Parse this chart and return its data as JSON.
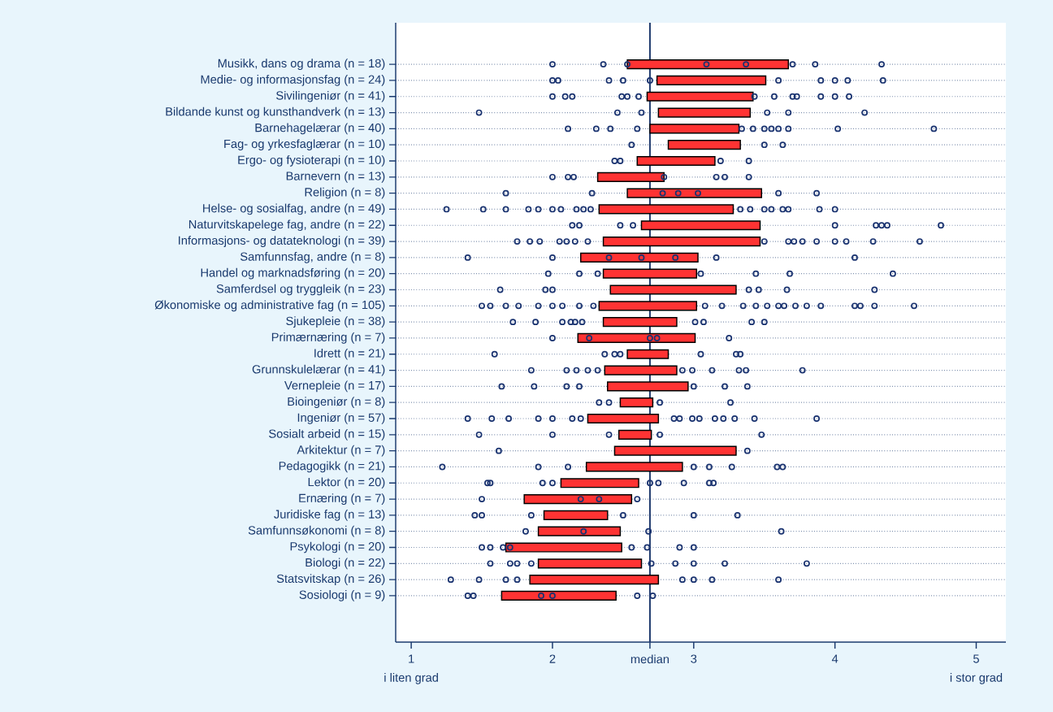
{
  "chart_data": {
    "type": "bar",
    "orientation": "horizontal",
    "categories": [
      "Musikk, dans og drama (n = 18)",
      "Medie- og informasjonsfag (n = 24)",
      "Sivilingeniør (n = 41)",
      "Bildande kunst og kunsthandverk (n = 13)",
      "Barnehagelærar (n = 40)",
      "Fag- og yrkesfaglærar (n = 10)",
      "Ergo- og fysioterapi (n = 10)",
      "Barnevern (n = 13)",
      "Religion (n = 8)",
      "Helse- og sosialfag, andre (n = 49)",
      "Naturvitskapelege fag, andre (n = 22)",
      "Informasjons- og datateknologi (n = 39)",
      "Samfunnsfag, andre (n = 8)",
      "Handel og marknadsføring (n = 20)",
      "Samferdsel og tryggleik (n = 23)",
      "Økonomiske og administrative fag (n = 105)",
      "Sjukepleie (n = 38)",
      "Primærnæring (n = 7)",
      "Idrett (n = 21)",
      "Grunnskulelærar (n = 41)",
      "Vernepleie (n = 17)",
      "Bioingeniør (n = 8)",
      "Ingeniør (n = 57)",
      "Sosialt arbeid (n = 15)",
      "Arkitektur (n = 7)",
      "Pedagogikk (n = 21)",
      "Lektor (n = 20)",
      "Ernæring (n = 7)",
      "Juridiske fag (n = 13)",
      "Samfunnsøkonomi (n = 8)",
      "Psykologi (n = 20)",
      "Biologi (n = 22)",
      "Statsvitskap (n = 26)",
      "Sosiologi (n = 9)"
    ],
    "series": [
      {
        "color": "#ff3333",
        "base": [
          2.53,
          2.74,
          2.67,
          2.75,
          2.69,
          2.82,
          2.6,
          2.32,
          2.53,
          2.33,
          2.63,
          2.36,
          2.2,
          2.36,
          2.41,
          2.33,
          2.36,
          2.18,
          2.53,
          2.37,
          2.39,
          2.48,
          2.25,
          2.47,
          2.44,
          2.24,
          2.06,
          1.8,
          1.94,
          1.9,
          1.67,
          1.9,
          1.84,
          1.64
        ],
        "values": [
          1.14,
          0.77,
          0.75,
          0.65,
          0.63,
          0.51,
          0.55,
          0.47,
          0.95,
          0.95,
          0.84,
          1.11,
          0.83,
          0.66,
          0.89,
          0.69,
          0.52,
          0.83,
          0.29,
          0.51,
          0.57,
          0.23,
          0.5,
          0.23,
          0.86,
          0.68,
          0.55,
          0.76,
          0.45,
          0.58,
          0.82,
          0.73,
          0.91,
          0.81
        ]
      },
      {
        "type": "scatter",
        "color": "#1a3370",
        "marker": "circle",
        "x": [
          "Musikk, dans og drama (n = 18)",
          "Musikk, dans og drama (n = 18)",
          "Musikk, dans og drama (n = 18)",
          "Musikk, dans og drama (n = 18)",
          "Musikk, dans og drama (n = 18)",
          "Musikk, dans og drama (n = 18)",
          "Musikk, dans og drama (n = 18)",
          "Musikk, dans og drama (n = 18)",
          "Medie- og informasjonsfag (n = 24)",
          "Medie- og informasjonsfag (n = 24)",
          "Medie- og informasjonsfag (n = 24)",
          "Medie- og informasjonsfag (n = 24)",
          "Medie- og informasjonsfag (n = 24)",
          "Medie- og informasjonsfag (n = 24)",
          "Medie- og informasjonsfag (n = 24)",
          "Medie- og informasjonsfag (n = 24)",
          "Medie- og informasjonsfag (n = 24)",
          "Medie- og informasjonsfag (n = 24)",
          "Sivilingeniør (n = 41)",
          "Sivilingeniør (n = 41)",
          "Sivilingeniør (n = 41)",
          "Sivilingeniør (n = 41)",
          "Sivilingeniør (n = 41)",
          "Sivilingeniør (n = 41)",
          "Sivilingeniør (n = 41)",
          "Sivilingeniør (n = 41)",
          "Sivilingeniør (n = 41)",
          "Sivilingeniør (n = 41)",
          "Sivilingeniør (n = 41)",
          "Sivilingeniør (n = 41)",
          "Sivilingeniør (n = 41)",
          "Bildande kunst og kunsthandverk (n = 13)",
          "Bildande kunst og kunsthandverk (n = 13)",
          "Bildande kunst og kunsthandverk (n = 13)",
          "Bildande kunst og kunsthandverk (n = 13)",
          "Bildande kunst og kunsthandverk (n = 13)",
          "Bildande kunst og kunsthandverk (n = 13)",
          "Barnehagelærar (n = 40)",
          "Barnehagelærar (n = 40)",
          "Barnehagelærar (n = 40)",
          "Barnehagelærar (n = 40)",
          "Barnehagelærar (n = 40)",
          "Barnehagelærar (n = 40)",
          "Barnehagelærar (n = 40)",
          "Barnehagelærar (n = 40)",
          "Barnehagelærar (n = 40)",
          "Barnehagelærar (n = 40)",
          "Barnehagelærar (n = 40)",
          "Barnehagelærar (n = 40)",
          "Fag- og yrkesfaglærar (n = 10)",
          "Fag- og yrkesfaglærar (n = 10)",
          "Fag- og yrkesfaglærar (n = 10)",
          "Ergo- og fysioterapi (n = 10)",
          "Ergo- og fysioterapi (n = 10)",
          "Ergo- og fysioterapi (n = 10)",
          "Ergo- og fysioterapi (n = 10)",
          "Barnevern (n = 13)",
          "Barnevern (n = 13)",
          "Barnevern (n = 13)",
          "Barnevern (n = 13)",
          "Barnevern (n = 13)",
          "Barnevern (n = 13)",
          "Barnevern (n = 13)",
          "Religion (n = 8)",
          "Religion (n = 8)",
          "Religion (n = 8)",
          "Religion (n = 8)",
          "Religion (n = 8)",
          "Religion (n = 8)",
          "Religion (n = 8)",
          "Helse- og sosialfag, andre (n = 49)",
          "Helse- og sosialfag, andre (n = 49)",
          "Helse- og sosialfag, andre (n = 49)",
          "Helse- og sosialfag, andre (n = 49)",
          "Helse- og sosialfag, andre (n = 49)",
          "Helse- og sosialfag, andre (n = 49)",
          "Helse- og sosialfag, andre (n = 49)",
          "Helse- og sosialfag, andre (n = 49)",
          "Helse- og sosialfag, andre (n = 49)",
          "Helse- og sosialfag, andre (n = 49)",
          "Helse- og sosialfag, andre (n = 49)",
          "Helse- og sosialfag, andre (n = 49)",
          "Helse- og sosialfag, andre (n = 49)",
          "Helse- og sosialfag, andre (n = 49)",
          "Helse- og sosialfag, andre (n = 49)",
          "Helse- og sosialfag, andre (n = 49)",
          "Helse- og sosialfag, andre (n = 49)",
          "Helse- og sosialfag, andre (n = 49)",
          "Naturvitskapelege fag, andre (n = 22)",
          "Naturvitskapelege fag, andre (n = 22)",
          "Naturvitskapelege fag, andre (n = 22)",
          "Naturvitskapelege fag, andre (n = 22)",
          "Naturvitskapelege fag, andre (n = 22)",
          "Naturvitskapelege fag, andre (n = 22)",
          "Naturvitskapelege fag, andre (n = 22)",
          "Naturvitskapelege fag, andre (n = 22)",
          "Naturvitskapelege fag, andre (n = 22)",
          "Informasjons- og datateknologi (n = 39)",
          "Informasjons- og datateknologi (n = 39)",
          "Informasjons- og datateknologi (n = 39)",
          "Informasjons- og datateknologi (n = 39)",
          "Informasjons- og datateknologi (n = 39)",
          "Informasjons- og datateknologi (n = 39)",
          "Informasjons- og datateknologi (n = 39)",
          "Informasjons- og datateknologi (n = 39)",
          "Informasjons- og datateknologi (n = 39)",
          "Informasjons- og datateknologi (n = 39)",
          "Informasjons- og datateknologi (n = 39)",
          "Informasjons- og datateknologi (n = 39)",
          "Informasjons- og datateknologi (n = 39)",
          "Informasjons- og datateknologi (n = 39)",
          "Informasjons- og datateknologi (n = 39)",
          "Informasjons- og datateknologi (n = 39)",
          "Samfunnsfag, andre (n = 8)",
          "Samfunnsfag, andre (n = 8)",
          "Samfunnsfag, andre (n = 8)",
          "Samfunnsfag, andre (n = 8)",
          "Samfunnsfag, andre (n = 8)",
          "Samfunnsfag, andre (n = 8)",
          "Samfunnsfag, andre (n = 8)",
          "Handel og marknadsføring (n = 20)",
          "Handel og marknadsføring (n = 20)",
          "Handel og marknadsføring (n = 20)",
          "Handel og marknadsføring (n = 20)",
          "Handel og marknadsføring (n = 20)",
          "Handel og marknadsføring (n = 20)",
          "Handel og marknadsføring (n = 20)",
          "Samferdsel og tryggleik (n = 23)",
          "Samferdsel og tryggleik (n = 23)",
          "Samferdsel og tryggleik (n = 23)",
          "Samferdsel og tryggleik (n = 23)",
          "Samferdsel og tryggleik (n = 23)",
          "Samferdsel og tryggleik (n = 23)",
          "Samferdsel og tryggleik (n = 23)",
          "Økonomiske og administrative fag (n = 105)",
          "Økonomiske og administrative fag (n = 105)",
          "Økonomiske og administrative fag (n = 105)",
          "Økonomiske og administrative fag (n = 105)",
          "Økonomiske og administrative fag (n = 105)",
          "Økonomiske og administrative fag (n = 105)",
          "Økonomiske og administrative fag (n = 105)",
          "Økonomiske og administrative fag (n = 105)",
          "Økonomiske og administrative fag (n = 105)",
          "Økonomiske og administrative fag (n = 105)",
          "Økonomiske og administrative fag (n = 105)",
          "Økonomiske og administrative fag (n = 105)",
          "Økonomiske og administrative fag (n = 105)",
          "Økonomiske og administrative fag (n = 105)",
          "Økonomiske og administrative fag (n = 105)",
          "Økonomiske og administrative fag (n = 105)",
          "Økonomiske og administrative fag (n = 105)",
          "Økonomiske og administrative fag (n = 105)",
          "Økonomiske og administrative fag (n = 105)",
          "Økonomiske og administrative fag (n = 105)",
          "Økonomiske og administrative fag (n = 105)",
          "Økonomiske og administrative fag (n = 105)",
          "Økonomiske og administrative fag (n = 105)",
          "Sjukepleie (n = 38)",
          "Sjukepleie (n = 38)",
          "Sjukepleie (n = 38)",
          "Sjukepleie (n = 38)",
          "Sjukepleie (n = 38)",
          "Sjukepleie (n = 38)",
          "Sjukepleie (n = 38)",
          "Sjukepleie (n = 38)",
          "Sjukepleie (n = 38)",
          "Sjukepleie (n = 38)",
          "Primærnæring (n = 7)",
          "Primærnæring (n = 7)",
          "Primærnæring (n = 7)",
          "Primærnæring (n = 7)",
          "Primærnæring (n = 7)",
          "Idrett (n = 21)",
          "Idrett (n = 21)",
          "Idrett (n = 21)",
          "Idrett (n = 21)",
          "Idrett (n = 21)",
          "Idrett (n = 21)",
          "Idrett (n = 21)",
          "Grunnskulelærar (n = 41)",
          "Grunnskulelærar (n = 41)",
          "Grunnskulelærar (n = 41)",
          "Grunnskulelærar (n = 41)",
          "Grunnskulelærar (n = 41)",
          "Grunnskulelærar (n = 41)",
          "Grunnskulelærar (n = 41)",
          "Grunnskulelærar (n = 41)",
          "Grunnskulelærar (n = 41)",
          "Grunnskulelærar (n = 41)",
          "Grunnskulelærar (n = 41)",
          "Vernepleie (n = 17)",
          "Vernepleie (n = 17)",
          "Vernepleie (n = 17)",
          "Vernepleie (n = 17)",
          "Vernepleie (n = 17)",
          "Vernepleie (n = 17)",
          "Vernepleie (n = 17)",
          "Bioingeniør (n = 8)",
          "Bioingeniør (n = 8)",
          "Bioingeniør (n = 8)",
          "Bioingeniør (n = 8)",
          "Ingeniør (n = 57)",
          "Ingeniør (n = 57)",
          "Ingeniør (n = 57)",
          "Ingeniør (n = 57)",
          "Ingeniør (n = 57)",
          "Ingeniør (n = 57)",
          "Ingeniør (n = 57)",
          "Ingeniør (n = 57)",
          "Ingeniør (n = 57)",
          "Ingeniør (n = 57)",
          "Ingeniør (n = 57)",
          "Ingeniør (n = 57)",
          "Ingeniør (n = 57)",
          "Ingeniør (n = 57)",
          "Ingeniør (n = 57)",
          "Ingeniør (n = 57)",
          "Sosialt arbeid (n = 15)",
          "Sosialt arbeid (n = 15)",
          "Sosialt arbeid (n = 15)",
          "Sosialt arbeid (n = 15)",
          "Sosialt arbeid (n = 15)",
          "Arkitektur (n = 7)",
          "Arkitektur (n = 7)",
          "Pedagogikk (n = 21)",
          "Pedagogikk (n = 21)",
          "Pedagogikk (n = 21)",
          "Pedagogikk (n = 21)",
          "Pedagogikk (n = 21)",
          "Pedagogikk (n = 21)",
          "Pedagogikk (n = 21)",
          "Pedagogikk (n = 21)",
          "Lektor (n = 20)",
          "Lektor (n = 20)",
          "Lektor (n = 20)",
          "Lektor (n = 20)",
          "Lektor (n = 20)",
          "Lektor (n = 20)",
          "Lektor (n = 20)",
          "Lektor (n = 20)",
          "Lektor (n = 20)",
          "Ernæring (n = 7)",
          "Ernæring (n = 7)",
          "Ernæring (n = 7)",
          "Ernæring (n = 7)",
          "Juridiske fag (n = 13)",
          "Juridiske fag (n = 13)",
          "Juridiske fag (n = 13)",
          "Juridiske fag (n = 13)",
          "Juridiske fag (n = 13)",
          "Juridiske fag (n = 13)",
          "Samfunnsøkonomi (n = 8)",
          "Samfunnsøkonomi (n = 8)",
          "Samfunnsøkonomi (n = 8)",
          "Samfunnsøkonomi (n = 8)",
          "Psykologi (n = 20)",
          "Psykologi (n = 20)",
          "Psykologi (n = 20)",
          "Psykologi (n = 20)",
          "Psykologi (n = 20)",
          "Psykologi (n = 20)",
          "Psykologi (n = 20)",
          "Psykologi (n = 20)",
          "Biologi (n = 22)",
          "Biologi (n = 22)",
          "Biologi (n = 22)",
          "Biologi (n = 22)",
          "Biologi (n = 22)",
          "Biologi (n = 22)",
          "Biologi (n = 22)",
          "Biologi (n = 22)",
          "Biologi (n = 22)",
          "Statsvitskap (n = 26)",
          "Statsvitskap (n = 26)",
          "Statsvitskap (n = 26)",
          "Statsvitskap (n = 26)",
          "Statsvitskap (n = 26)",
          "Statsvitskap (n = 26)",
          "Statsvitskap (n = 26)",
          "Statsvitskap (n = 26)",
          "Sosiologi (n = 9)",
          "Sosiologi (n = 9)",
          "Sosiologi (n = 9)",
          "Sosiologi (n = 9)",
          "Sosiologi (n = 9)",
          "Sosiologi (n = 9)"
        ],
        "values": [
          2.0,
          2.36,
          2.53,
          3.09,
          3.37,
          3.7,
          3.86,
          4.33,
          2.0,
          2.04,
          2.4,
          2.5,
          2.69,
          3.6,
          3.9,
          4.0,
          4.09,
          4.34,
          2.0,
          2.09,
          2.14,
          2.49,
          2.53,
          2.61,
          3.43,
          3.57,
          3.7,
          3.73,
          3.9,
          4.0,
          4.1,
          1.48,
          2.46,
          2.63,
          3.52,
          3.67,
          4.21,
          2.11,
          2.31,
          2.41,
          2.6,
          3.34,
          3.42,
          3.5,
          3.55,
          3.6,
          3.67,
          4.02,
          4.7,
          2.56,
          3.5,
          3.63,
          2.44,
          2.48,
          3.19,
          3.39,
          2.0,
          2.11,
          2.15,
          2.79,
          3.16,
          3.22,
          3.39,
          1.67,
          2.28,
          2.78,
          2.89,
          3.03,
          3.6,
          3.87,
          1.25,
          1.51,
          1.67,
          1.83,
          1.9,
          2.0,
          2.06,
          2.17,
          2.22,
          2.27,
          3.33,
          3.4,
          3.5,
          3.55,
          3.63,
          3.67,
          3.89,
          4.0,
          2.14,
          2.19,
          2.48,
          2.57,
          4.0,
          4.29,
          4.33,
          4.37,
          4.75,
          1.75,
          1.84,
          1.91,
          2.05,
          2.1,
          2.16,
          2.25,
          3.5,
          3.67,
          3.71,
          3.77,
          3.87,
          4.0,
          4.08,
          4.27,
          4.6,
          1.4,
          2.0,
          2.4,
          2.63,
          2.87,
          3.16,
          4.14,
          1.97,
          2.19,
          2.32,
          3.05,
          3.44,
          3.68,
          4.41,
          1.63,
          1.95,
          2.0,
          3.39,
          3.46,
          3.66,
          4.28,
          1.5,
          1.56,
          1.67,
          1.76,
          1.9,
          2.0,
          2.07,
          2.19,
          2.29,
          3.08,
          3.2,
          3.35,
          3.44,
          3.52,
          3.6,
          3.64,
          3.72,
          3.8,
          3.9,
          4.14,
          4.18,
          4.28,
          4.56,
          1.72,
          1.88,
          2.07,
          2.13,
          2.16,
          2.21,
          3.01,
          3.07,
          3.41,
          3.5,
          2.0,
          2.26,
          2.69,
          2.74,
          3.25,
          1.59,
          2.37,
          2.44,
          2.48,
          3.05,
          3.3,
          3.33,
          1.85,
          2.1,
          2.17,
          2.25,
          2.32,
          2.92,
          2.99,
          3.13,
          3.32,
          3.37,
          3.77,
          1.64,
          1.87,
          2.1,
          2.19,
          3.0,
          3.22,
          3.38,
          2.33,
          2.4,
          2.76,
          3.26,
          1.4,
          1.57,
          1.69,
          1.9,
          2.0,
          2.14,
          2.2,
          2.86,
          2.9,
          2.99,
          3.04,
          3.15,
          3.21,
          3.29,
          3.43,
          3.87,
          1.48,
          2.0,
          2.4,
          2.76,
          3.48,
          1.62,
          3.38,
          1.22,
          1.9,
          2.11,
          3.0,
          3.11,
          3.27,
          3.59,
          3.63,
          1.54,
          1.56,
          1.93,
          2.0,
          2.69,
          2.75,
          2.93,
          3.11,
          3.14,
          1.5,
          2.2,
          2.33,
          2.6,
          1.45,
          1.5,
          1.85,
          2.5,
          3.0,
          3.31,
          1.81,
          2.22,
          2.68,
          3.62,
          1.5,
          1.56,
          1.65,
          1.7,
          2.56,
          2.67,
          2.9,
          3.0,
          1.56,
          1.7,
          1.75,
          1.85,
          2.7,
          2.87,
          3.0,
          3.22,
          3.8,
          1.28,
          1.48,
          1.67,
          1.75,
          2.92,
          3.0,
          3.13,
          3.6,
          1.4,
          1.44,
          1.92,
          2.0,
          2.6,
          2.71
        ]
      }
    ],
    "xlim": [
      0.89,
      5.21
    ],
    "xticks": [
      1,
      2,
      {
        "value": 2.69,
        "label": "median"
      },
      3,
      4,
      5
    ],
    "ref_lines": [
      {
        "axis": "x",
        "value": 2.69,
        "color": "#1f3a6e"
      }
    ],
    "grid": "y",
    "annotations": [
      "i liten grad",
      "i stor grad"
    ]
  }
}
